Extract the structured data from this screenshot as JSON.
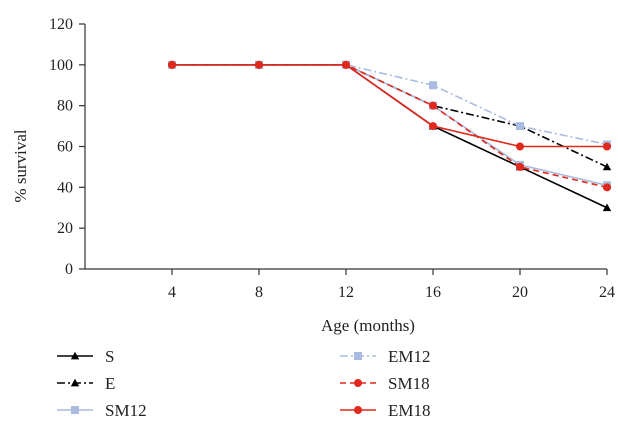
{
  "chart_data": {
    "type": "line",
    "title": "",
    "xlabel": "Age (months)",
    "ylabel": "% survival",
    "x": [
      4,
      8,
      12,
      16,
      20,
      24
    ],
    "ylim": [
      0,
      120
    ],
    "yticks": [
      0,
      20,
      40,
      60,
      80,
      100,
      120
    ],
    "grid": false,
    "legend_position": "bottom",
    "series": [
      {
        "name": "S",
        "values": [
          100,
          100,
          100,
          70,
          50,
          30
        ],
        "color": "#000000",
        "dash": "solid",
        "marker": "triangle"
      },
      {
        "name": "E",
        "values": [
          100,
          100,
          100,
          80,
          70,
          50
        ],
        "color": "#000000",
        "dash": "dashdot",
        "marker": "triangle"
      },
      {
        "name": "SM12",
        "values": [
          100,
          100,
          100,
          80,
          51,
          41
        ],
        "color": "#a9bce0",
        "dash": "solid",
        "marker": "square"
      },
      {
        "name": "EM12",
        "values": [
          100,
          100,
          100,
          90,
          70,
          61
        ],
        "color": "#a9bce0",
        "dash": "dashdot",
        "marker": "square"
      },
      {
        "name": "SM18",
        "values": [
          100,
          100,
          100,
          80,
          50,
          40
        ],
        "color": "#e0281c",
        "dash": "dashed",
        "marker": "circle"
      },
      {
        "name": "EM18",
        "values": [
          100,
          100,
          100,
          70,
          60,
          60
        ],
        "color": "#e0281c",
        "dash": "solid",
        "marker": "circle"
      }
    ]
  }
}
